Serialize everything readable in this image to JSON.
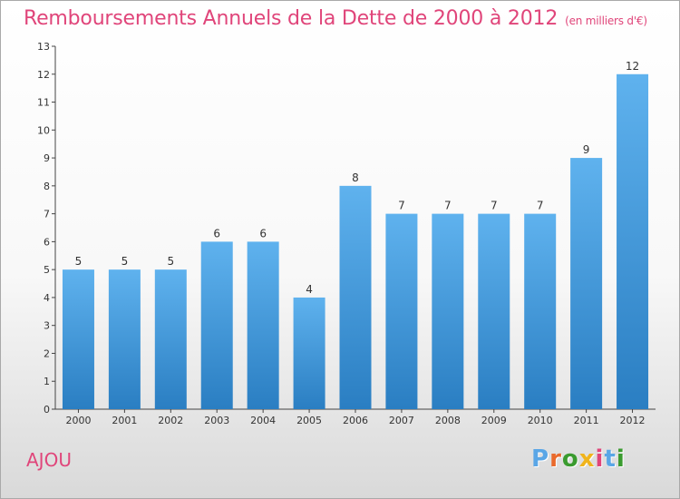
{
  "header": {
    "title": "Remboursements Annuels de la Dette de 2000 à 2012",
    "unit": "(en milliers d'€)"
  },
  "footer": {
    "commune": "AJOU",
    "logo_letters": [
      "P",
      "r",
      "o",
      "x",
      "i",
      "t",
      "i"
    ],
    "logo_colors": [
      "#5aa6e6",
      "#e96a2c",
      "#3a9b2f",
      "#f0b41c",
      "#e0457a",
      "#5aa6e6",
      "#3a9b2f"
    ]
  },
  "colors": {
    "bar_top": "#5fb2ee",
    "bar_bottom": "#2a7ec2",
    "title": "#e0457a"
  },
  "chart_data": {
    "type": "bar",
    "categories": [
      "2000",
      "2001",
      "2002",
      "2003",
      "2004",
      "2005",
      "2006",
      "2007",
      "2008",
      "2009",
      "2010",
      "2011",
      "2012"
    ],
    "values": [
      5,
      5,
      5,
      6,
      6,
      4,
      8,
      7,
      7,
      7,
      7,
      9,
      12
    ],
    "title": "Remboursements Annuels de la Dette de 2000 à 2012",
    "ylim": [
      0,
      13
    ],
    "yticks": [
      0,
      1,
      2,
      3,
      4,
      5,
      6,
      7,
      8,
      9,
      10,
      11,
      12,
      13
    ],
    "grid": false,
    "legend": "none"
  }
}
